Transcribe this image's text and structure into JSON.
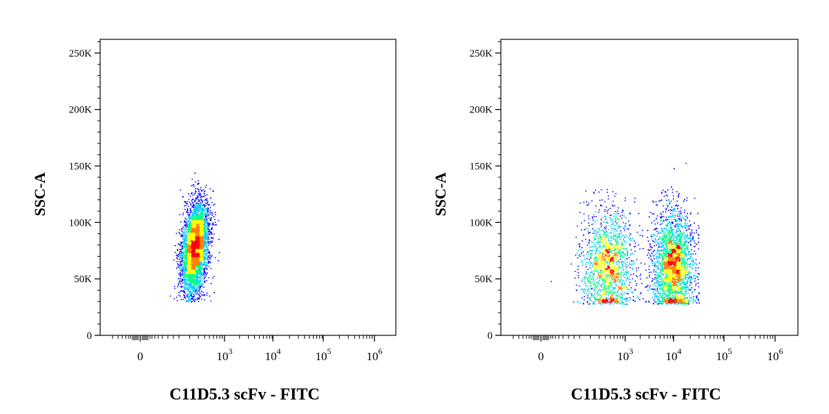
{
  "chart_data": [
    {
      "type": "scatter",
      "title": "",
      "xlabel": "C11D5.3 scFv - FITC",
      "ylabel": "SSC-A",
      "x_scale": "biexponential",
      "x_tick_labels": [
        {
          "base": "0",
          "exp": ""
        },
        {
          "base": "10",
          "exp": "3"
        },
        {
          "base": "10",
          "exp": "4"
        },
        {
          "base": "10",
          "exp": "5"
        },
        {
          "base": "10",
          "exp": "6"
        }
      ],
      "y_tick_labels": [
        "0",
        "50K",
        "100K",
        "150K",
        "200K",
        "250K"
      ],
      "ylim": [
        0,
        262144
      ],
      "color_scale": [
        "#0000ff",
        "#00c8ff",
        "#00ff80",
        "#ffff00",
        "#ff8000",
        "#ff0000"
      ],
      "populations": [
        {
          "x_center": 250,
          "x_spread_decades": 0.13,
          "y_center": 78000,
          "y_spread": 20000,
          "slope": 3200,
          "count": 5200,
          "y_min": 30000,
          "y_max": 146000
        }
      ]
    },
    {
      "type": "scatter",
      "title": "",
      "xlabel": "C11D5.3 scFv - FITC",
      "ylabel": "SSC-A",
      "x_scale": "biexponential",
      "x_tick_labels": [
        {
          "base": "0",
          "exp": ""
        },
        {
          "base": "10",
          "exp": "3"
        },
        {
          "base": "10",
          "exp": "4"
        },
        {
          "base": "10",
          "exp": "5"
        },
        {
          "base": "10",
          "exp": "6"
        }
      ],
      "y_tick_labels": [
        "0",
        "50K",
        "100K",
        "150K",
        "200K",
        "250K"
      ],
      "ylim": [
        0,
        262144
      ],
      "color_scale": [
        "#0000ff",
        "#00c8ff",
        "#00ff80",
        "#ffff00",
        "#ff8000",
        "#ff0000"
      ],
      "populations": [
        {
          "x_center": 450,
          "x_spread_decades": 0.25,
          "y_center": 62000,
          "y_spread": 24000,
          "slope": 0,
          "count": 1700,
          "y_min": 28000,
          "y_max": 155000
        },
        {
          "x_center": 9000,
          "x_spread_decades": 0.2,
          "y_center": 62000,
          "y_spread": 24000,
          "slope": 0,
          "count": 3400,
          "y_min": 28000,
          "y_max": 158000,
          "x_max": 30000
        }
      ]
    }
  ]
}
